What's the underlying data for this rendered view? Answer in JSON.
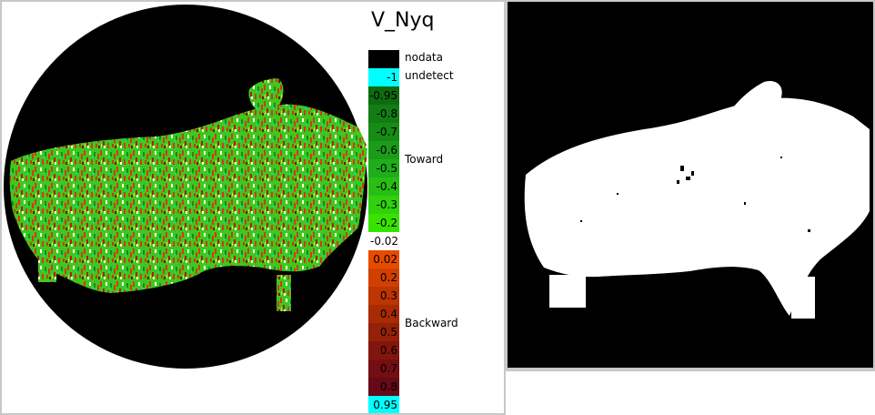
{
  "chart_data": {
    "type": "heatmap",
    "title": "V_Nyq",
    "legend": {
      "special": [
        {
          "label": "nodata",
          "color": "#000000"
        },
        {
          "label": "undetect",
          "color": "#000000"
        }
      ],
      "bins": [
        {
          "label": "-1",
          "color": "#00ffff"
        },
        {
          "label": "-0.95",
          "color": "#0f6b10"
        },
        {
          "label": "-0.8",
          "color": "#137d13"
        },
        {
          "label": "-0.7",
          "color": "#168c16"
        },
        {
          "label": "-0.6",
          "color": "#1a9c19"
        },
        {
          "label": "-0.5",
          "color": "#1fad1c"
        },
        {
          "label": "-0.4",
          "color": "#27bf14"
        },
        {
          "label": "-0.3",
          "color": "#2fd20c"
        },
        {
          "label": "-0.2",
          "color": "#38e300"
        },
        {
          "label": "-0.02",
          "color": "#ffffff"
        },
        {
          "label": "0.02",
          "color": "#e64b00"
        },
        {
          "label": "0.2",
          "color": "#d24000"
        },
        {
          "label": "0.3",
          "color": "#bc3502"
        },
        {
          "label": "0.4",
          "color": "#a82b04"
        },
        {
          "label": "0.5",
          "color": "#942108"
        },
        {
          "label": "0.6",
          "color": "#82160e"
        },
        {
          "label": "0.7",
          "color": "#740e12"
        },
        {
          "label": "0.8",
          "color": "#650a16"
        },
        {
          "label": "0.95",
          "color": "#00ffff"
        }
      ],
      "side_labels": [
        "Toward",
        "Backward"
      ]
    },
    "colors": {
      "toward": "#3ec81e",
      "backward": "#d23a14",
      "mask": "#ffffff",
      "background": "#000000"
    }
  }
}
